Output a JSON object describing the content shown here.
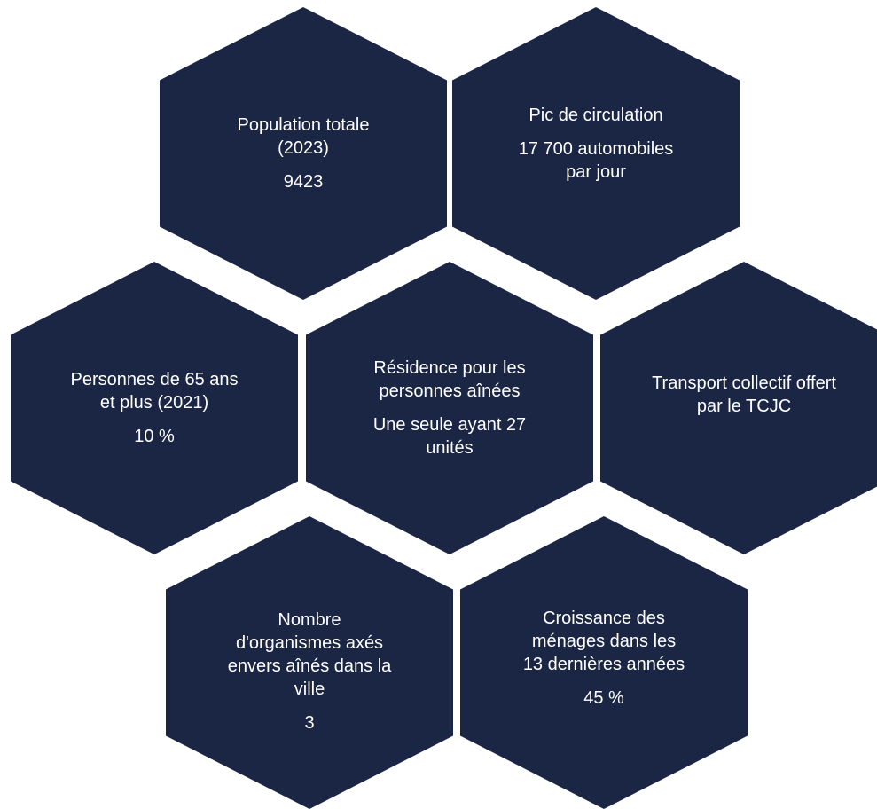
{
  "colors": {
    "hexagon_fill": "#1b2644",
    "text": "#ffffff",
    "background": "#ffffff"
  },
  "hexagons": [
    {
      "label": "Population totale (2023)",
      "value": "9423"
    },
    {
      "label": "Pic de circulation",
      "value": "17 700 automobiles par jour"
    },
    {
      "label": "Personnes de 65 ans et plus (2021)",
      "value": "10 %"
    },
    {
      "label": "Résidence pour les personnes aînées",
      "value": "Une seule ayant 27 unités"
    },
    {
      "label": "Transport collectif offert par le TCJC",
      "value": ""
    },
    {
      "label": "Nombre d'organismes axés envers aînés dans la ville",
      "value": "3"
    },
    {
      "label": "Croissance des ménages dans les 13 dernières années",
      "value": "45 %"
    }
  ]
}
